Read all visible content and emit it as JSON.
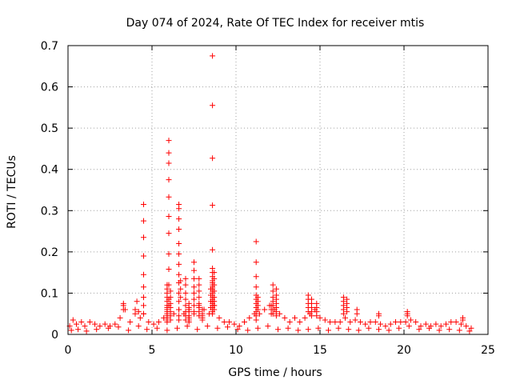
{
  "chart_data": {
    "type": "scatter",
    "title": "Day 074 of 2024, Rate Of TEC Index for receiver mtis",
    "xlabel": "GPS time / hours",
    "ylabel": "ROTI / TECUs",
    "xlim": [
      0,
      25
    ],
    "ylim": [
      0,
      0.7
    ],
    "xticks": [
      0,
      5,
      10,
      15,
      20,
      25
    ],
    "xtick_labels": [
      "0",
      "5",
      "10",
      "15",
      "20",
      "25"
    ],
    "yticks": [
      0,
      0.1,
      0.2,
      0.3,
      0.4,
      0.5,
      0.6,
      0.7
    ],
    "ytick_labels": [
      "0",
      "0.1",
      "0.2",
      "0.3",
      "0.4",
      "0.5",
      "0.6",
      "0.7"
    ],
    "grid": true,
    "legend": "none",
    "marker": "plus",
    "color": "#ff0000",
    "series": [
      {
        "x": [
          0.1,
          0.3,
          0.5,
          0.8,
          1.0,
          1.3,
          1.6,
          1.9,
          2.2,
          2.5,
          2.8,
          3.1,
          3.4,
          3.7,
          4.0,
          4.3,
          4.5,
          4.8,
          5.1,
          5.4,
          5.7,
          6.0,
          6.3,
          6.6,
          6.9,
          7.2,
          7.5,
          7.8,
          8.1,
          8.4,
          8.7,
          9.0,
          9.3,
          9.6,
          9.9,
          10.2,
          10.5,
          10.8,
          11.1,
          11.4,
          11.7,
          12.0,
          12.3,
          12.6,
          12.9,
          13.2,
          13.5,
          13.8,
          14.1,
          14.4,
          14.7,
          15.0,
          15.3,
          15.6,
          15.9,
          16.2,
          16.5,
          16.8,
          17.1,
          17.4,
          17.7,
          18.0,
          18.3,
          18.6,
          18.9,
          19.2,
          19.5,
          19.8,
          20.1,
          20.4,
          20.7,
          21.0,
          21.3,
          21.6,
          21.9,
          22.2,
          22.5,
          22.8,
          23.1,
          23.4,
          23.7,
          24.0,
          0.2,
          0.6,
          1.1,
          1.7,
          2.4,
          3.0,
          3.6,
          4.2,
          4.7,
          5.3,
          5.9,
          6.5,
          7.1,
          7.7,
          8.3,
          8.9,
          9.5,
          10.1,
          10.7,
          11.3,
          11.9,
          12.5,
          13.1,
          13.7,
          14.3,
          14.9,
          15.5,
          16.1,
          16.7,
          17.3,
          17.9,
          18.5,
          19.1,
          19.7,
          20.3,
          20.9,
          21.5,
          22.1,
          22.7,
          23.3,
          23.9,
          3.3,
          3.3,
          3.3,
          4.5,
          4.5,
          4.5,
          4.5,
          4.5,
          4.5,
          4.5,
          4.5,
          4.5,
          4.0,
          4.1,
          4.2,
          5.9,
          5.9,
          5.9,
          5.9,
          5.9,
          5.9,
          5.9,
          5.9,
          5.9,
          5.9,
          5.9,
          5.9,
          5.9,
          5.9,
          6.0,
          6.0,
          6.0,
          6.0,
          6.0,
          6.0,
          6.0,
          6.0,
          6.0,
          6.0,
          6.0,
          6.1,
          6.1,
          6.1,
          6.1,
          6.1,
          6.1,
          6.1,
          6.6,
          6.6,
          6.6,
          6.6,
          6.6,
          6.6,
          6.6,
          6.6,
          6.6,
          6.6,
          6.6,
          6.6,
          6.6,
          6.6,
          6.7,
          6.7,
          6.7,
          7.0,
          7.0,
          7.0,
          7.0,
          7.0,
          7.0,
          7.0,
          7.0,
          7.2,
          7.2,
          7.2,
          7.2,
          7.2,
          7.2,
          7.2,
          7.5,
          7.5,
          7.5,
          7.5,
          7.5,
          7.5,
          7.5,
          7.5,
          7.8,
          7.8,
          7.8,
          7.8,
          7.8,
          7.8,
          7.8,
          7.8,
          8.0,
          8.0,
          8.0,
          8.0,
          8.0,
          8.6,
          8.6,
          8.6,
          8.6,
          8.6,
          8.6,
          8.6,
          8.6,
          8.6,
          8.6,
          8.6,
          8.6,
          8.6,
          8.6,
          8.6,
          8.6,
          8.6,
          8.6,
          8.6,
          8.6,
          8.6,
          8.6,
          8.6,
          8.6,
          8.6,
          8.7,
          8.7,
          8.7,
          8.7,
          8.7,
          8.7,
          8.7,
          8.7,
          8.5,
          8.5,
          8.5,
          8.5,
          11.2,
          11.2,
          11.2,
          11.2,
          11.2,
          11.2,
          11.2,
          11.2,
          11.2,
          11.2,
          11.2,
          11.3,
          11.3,
          11.3,
          11.3,
          12.2,
          12.2,
          12.2,
          12.2,
          12.2,
          12.2,
          12.2,
          12.4,
          12.4,
          12.4,
          12.4,
          12.4,
          12.4,
          12.4,
          12.1,
          12.1,
          12.1,
          14.3,
          14.3,
          14.3,
          14.3,
          14.3,
          14.5,
          14.5,
          14.5,
          14.5,
          14.5,
          14.8,
          14.8,
          14.8,
          14.8,
          16.4,
          16.4,
          16.4,
          16.4,
          16.4,
          16.6,
          16.6,
          16.6,
          16.6,
          17.2,
          17.2,
          18.5,
          18.5,
          20.2,
          20.2,
          20.2,
          23.5,
          23.5
        ],
        "y": [
          0.02,
          0.035,
          0.025,
          0.03,
          0.02,
          0.03,
          0.025,
          0.02,
          0.025,
          0.02,
          0.025,
          0.04,
          0.06,
          0.03,
          0.05,
          0.04,
          0.05,
          0.03,
          0.025,
          0.03,
          0.04,
          0.07,
          0.05,
          0.06,
          0.05,
          0.06,
          0.05,
          0.07,
          0.06,
          0.05,
          0.07,
          0.04,
          0.03,
          0.03,
          0.025,
          0.02,
          0.03,
          0.04,
          0.05,
          0.05,
          0.06,
          0.07,
          0.06,
          0.05,
          0.04,
          0.03,
          0.04,
          0.03,
          0.04,
          0.05,
          0.06,
          0.04,
          0.035,
          0.03,
          0.03,
          0.03,
          0.04,
          0.03,
          0.035,
          0.03,
          0.025,
          0.03,
          0.03,
          0.025,
          0.02,
          0.025,
          0.03,
          0.03,
          0.03,
          0.035,
          0.03,
          0.02,
          0.025,
          0.02,
          0.025,
          0.02,
          0.025,
          0.03,
          0.03,
          0.025,
          0.02,
          0.015,
          0.01,
          0.012,
          0.008,
          0.012,
          0.015,
          0.018,
          0.01,
          0.02,
          0.012,
          0.015,
          0.01,
          0.015,
          0.02,
          0.012,
          0.02,
          0.015,
          0.018,
          0.012,
          0.01,
          0.015,
          0.02,
          0.012,
          0.015,
          0.01,
          0.012,
          0.015,
          0.01,
          0.015,
          0.012,
          0.01,
          0.015,
          0.012,
          0.01,
          0.015,
          0.02,
          0.012,
          0.015,
          0.01,
          0.012,
          0.01,
          0.008,
          0.06,
          0.07,
          0.075,
          0.315,
          0.275,
          0.235,
          0.19,
          0.145,
          0.115,
          0.09,
          0.07,
          0.05,
          0.06,
          0.08,
          0.055,
          0.12,
          0.11,
          0.1,
          0.09,
          0.08,
          0.07,
          0.065,
          0.06,
          0.055,
          0.05,
          0.045,
          0.04,
          0.035,
          0.03,
          0.47,
          0.44,
          0.415,
          0.375,
          0.333,
          0.286,
          0.245,
          0.195,
          0.158,
          0.12,
          0.085,
          0.105,
          0.09,
          0.075,
          0.065,
          0.055,
          0.045,
          0.035,
          0.315,
          0.305,
          0.28,
          0.255,
          0.22,
          0.195,
          0.17,
          0.145,
          0.125,
          0.1,
          0.08,
          0.06,
          0.045,
          0.035,
          0.13,
          0.11,
          0.09,
          0.135,
          0.12,
          0.1,
          0.085,
          0.07,
          0.055,
          0.045,
          0.035,
          0.075,
          0.065,
          0.055,
          0.045,
          0.04,
          0.035,
          0.03,
          0.175,
          0.155,
          0.135,
          0.115,
          0.1,
          0.085,
          0.07,
          0.055,
          0.135,
          0.12,
          0.105,
          0.09,
          0.075,
          0.065,
          0.055,
          0.045,
          0.06,
          0.05,
          0.045,
          0.04,
          0.035,
          0.675,
          0.555,
          0.427,
          0.313,
          0.205,
          0.16,
          0.15,
          0.14,
          0.13,
          0.125,
          0.12,
          0.115,
          0.11,
          0.105,
          0.1,
          0.095,
          0.09,
          0.085,
          0.08,
          0.075,
          0.07,
          0.065,
          0.06,
          0.055,
          0.05,
          0.15,
          0.135,
          0.12,
          0.105,
          0.09,
          0.08,
          0.07,
          0.06,
          0.11,
          0.095,
          0.08,
          0.065,
          0.225,
          0.175,
          0.14,
          0.115,
          0.095,
          0.085,
          0.075,
          0.065,
          0.055,
          0.045,
          0.035,
          0.09,
          0.08,
          0.07,
          0.06,
          0.12,
          0.105,
          0.09,
          0.08,
          0.07,
          0.06,
          0.05,
          0.11,
          0.095,
          0.085,
          0.075,
          0.065,
          0.055,
          0.045,
          0.07,
          0.06,
          0.05,
          0.095,
          0.085,
          0.075,
          0.065,
          0.055,
          0.085,
          0.075,
          0.065,
          0.055,
          0.045,
          0.075,
          0.065,
          0.055,
          0.045,
          0.09,
          0.08,
          0.07,
          0.06,
          0.05,
          0.085,
          0.075,
          0.065,
          0.055,
          0.06,
          0.05,
          0.05,
          0.045,
          0.055,
          0.05,
          0.045,
          0.04,
          0.035
        ]
      }
    ]
  }
}
